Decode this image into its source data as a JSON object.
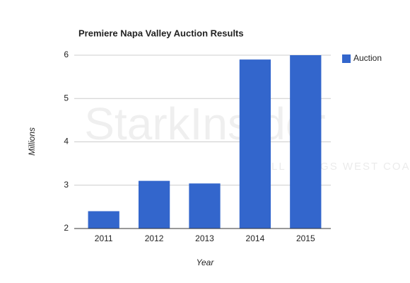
{
  "chart_data": {
    "type": "bar",
    "title": "Premiere Napa Valley Auction Results",
    "x_label": "Year",
    "y_label": "Millions",
    "categories": [
      "2011",
      "2012",
      "2013",
      "2014",
      "2015"
    ],
    "series": [
      {
        "name": "Auction",
        "color": "#3366cc",
        "values": [
          2.4,
          3.1,
          3.04,
          5.9,
          6.0
        ]
      }
    ],
    "ylim": [
      2,
      6
    ],
    "yticks": [
      2,
      3,
      4,
      5,
      6
    ],
    "grid": true,
    "legend": "right"
  },
  "watermark": {
    "brand": "StarkInsider",
    "tagline": "ALL THINGS WEST COAST"
  }
}
